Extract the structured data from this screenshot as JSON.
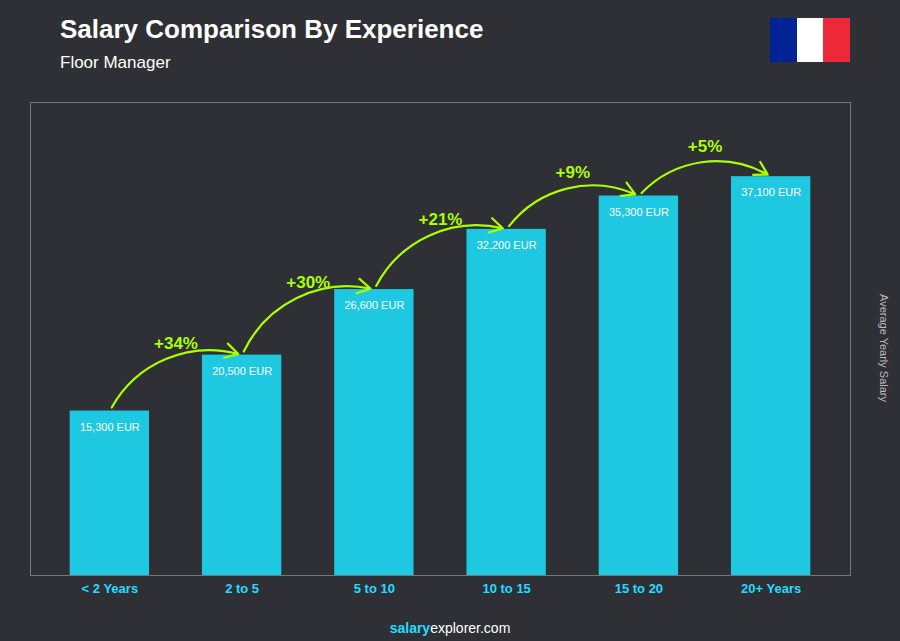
{
  "chart_data": {
    "type": "bar",
    "title": "Salary Comparison By Experience",
    "subtitle": "Floor Manager",
    "categories": [
      "< 2 Years",
      "2 to 5",
      "5 to 10",
      "10 to 15",
      "15 to 20",
      "20+ Years"
    ],
    "values": [
      15300,
      20500,
      26600,
      32200,
      35300,
      37100
    ],
    "value_labels": [
      "15,300 EUR",
      "20,500 EUR",
      "26,600 EUR",
      "32,200 EUR",
      "35,300 EUR",
      "37,100 EUR"
    ],
    "data_labels": true,
    "color": "#1ec8e0",
    "ylim": [
      0,
      44000
    ],
    "ylabel": "Average Yearly Salary",
    "tick_labels": "x",
    "grid": false,
    "annotations": [
      {
        "text": "+34%",
        "from": "< 2 Years",
        "to": "2 to 5"
      },
      {
        "text": "+30%",
        "from": "2 to 5",
        "to": "5 to 10"
      },
      {
        "text": "+21%",
        "from": "5 to 10",
        "to": "10 to 15"
      },
      {
        "text": "+9%",
        "from": "10 to 15",
        "to": "15 to 20"
      },
      {
        "text": "+5%",
        "from": "15 to 20",
        "to": "20+ Years"
      }
    ],
    "watermark": [
      "salary",
      "explorer.com"
    ]
  }
}
